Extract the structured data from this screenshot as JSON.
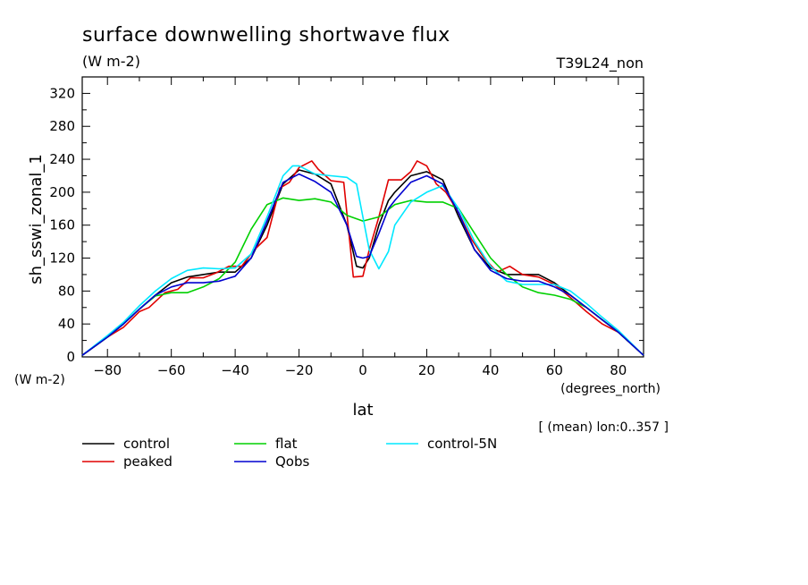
{
  "chart_data": {
    "type": "line",
    "title": "surface downwelling shortwave flux",
    "units_label": "(W m-2)",
    "run_label": "T39L24_non",
    "xlabel": "lat",
    "x_units": "(degrees_north)",
    "ylabel": "sh_sswi_zonal_1",
    "y_units": "(W m-2)",
    "footnote": "[ (mean) lon:0..357 ]",
    "xlim": [
      -87.9,
      87.9
    ],
    "ylim": [
      0,
      340
    ],
    "xticks": [
      -80,
      -60,
      -40,
      -20,
      0,
      20,
      40,
      60,
      80
    ],
    "yticks": [
      0,
      40,
      80,
      120,
      160,
      200,
      240,
      280,
      320
    ],
    "grid": false,
    "legend_position": "bottom",
    "series": [
      {
        "name": "control",
        "color": "#000000",
        "x": [
          -87.9,
          -80,
          -75,
          -70,
          -65,
          -60,
          -55,
          -50,
          -45,
          -40,
          -35,
          -30,
          -25,
          -20,
          -15,
          -10,
          -5,
          -2,
          0,
          2,
          5,
          8,
          10,
          15,
          20,
          25,
          30,
          35,
          40,
          45,
          50,
          55,
          60,
          65,
          70,
          75,
          80,
          87.9
        ],
        "values": [
          2,
          24,
          40,
          58,
          75,
          90,
          97,
          100,
          103,
          103,
          120,
          160,
          210,
          227,
          222,
          210,
          160,
          110,
          108,
          120,
          160,
          190,
          200,
          220,
          225,
          215,
          170,
          130,
          108,
          100,
          100,
          100,
          90,
          75,
          60,
          45,
          30,
          2
        ]
      },
      {
        "name": "peaked",
        "color": "#e00000",
        "x": [
          -87.9,
          -80,
          -75,
          -70,
          -67,
          -62,
          -58,
          -54,
          -50,
          -46,
          -42,
          -38,
          -34,
          -30,
          -26,
          -23,
          -20,
          -16,
          -14,
          -10,
          -6,
          -3,
          0,
          2,
          5,
          8,
          12,
          15,
          17,
          20,
          23,
          26,
          30,
          34,
          38,
          42,
          46,
          50,
          55,
          60,
          65,
          70,
          75,
          80,
          87.9
        ],
        "values": [
          2,
          24,
          36,
          55,
          60,
          78,
          82,
          96,
          96,
          102,
          110,
          110,
          130,
          145,
          205,
          212,
          230,
          238,
          228,
          214,
          212,
          97,
          98,
          130,
          170,
          215,
          215,
          225,
          238,
          232,
          210,
          200,
          175,
          143,
          120,
          103,
          110,
          100,
          97,
          88,
          72,
          55,
          40,
          30,
          2
        ]
      },
      {
        "name": "flat",
        "color": "#00d000",
        "x": [
          -87.9,
          -80,
          -75,
          -70,
          -65,
          -60,
          -55,
          -50,
          -45,
          -40,
          -35,
          -30,
          -25,
          -20,
          -15,
          -10,
          -5,
          0,
          5,
          10,
          15,
          20,
          25,
          30,
          35,
          40,
          45,
          50,
          55,
          60,
          65,
          70,
          75,
          80,
          87.9
        ],
        "values": [
          2,
          24,
          40,
          58,
          74,
          78,
          78,
          85,
          95,
          115,
          155,
          185,
          193,
          190,
          192,
          188,
          172,
          165,
          170,
          185,
          190,
          188,
          188,
          180,
          150,
          120,
          100,
          85,
          78,
          75,
          70,
          60,
          45,
          30,
          2
        ]
      },
      {
        "name": "control-5N",
        "color": "#00e8ff",
        "x": [
          -87.9,
          -80,
          -75,
          -70,
          -65,
          -60,
          -55,
          -50,
          -45,
          -40,
          -35,
          -30,
          -25,
          -22,
          -20,
          -15,
          -10,
          -5,
          -2,
          0,
          2,
          5,
          8,
          10,
          15,
          20,
          25,
          30,
          35,
          40,
          45,
          50,
          55,
          60,
          65,
          70,
          75,
          80,
          87.9
        ],
        "values": [
          2,
          26,
          42,
          62,
          80,
          95,
          105,
          108,
          107,
          108,
          125,
          170,
          220,
          232,
          232,
          222,
          220,
          218,
          210,
          170,
          130,
          107,
          128,
          160,
          188,
          200,
          208,
          180,
          140,
          110,
          92,
          88,
          88,
          88,
          80,
          65,
          48,
          32,
          2
        ]
      },
      {
        "name": "Qobs",
        "color": "#0000d0",
        "x": [
          -87.9,
          -80,
          -75,
          -70,
          -65,
          -60,
          -55,
          -50,
          -45,
          -40,
          -35,
          -30,
          -25,
          -20,
          -15,
          -10,
          -5,
          -2,
          0,
          2,
          5,
          8,
          10,
          15,
          20,
          25,
          30,
          35,
          40,
          45,
          50,
          55,
          60,
          65,
          70,
          75,
          80,
          87.9
        ],
        "values": [
          2,
          24,
          40,
          58,
          75,
          85,
          90,
          90,
          92,
          98,
          120,
          165,
          212,
          222,
          213,
          200,
          160,
          122,
          120,
          122,
          150,
          180,
          190,
          212,
          220,
          210,
          175,
          130,
          105,
          95,
          92,
          92,
          85,
          75,
          60,
          45,
          30,
          2
        ]
      }
    ]
  }
}
